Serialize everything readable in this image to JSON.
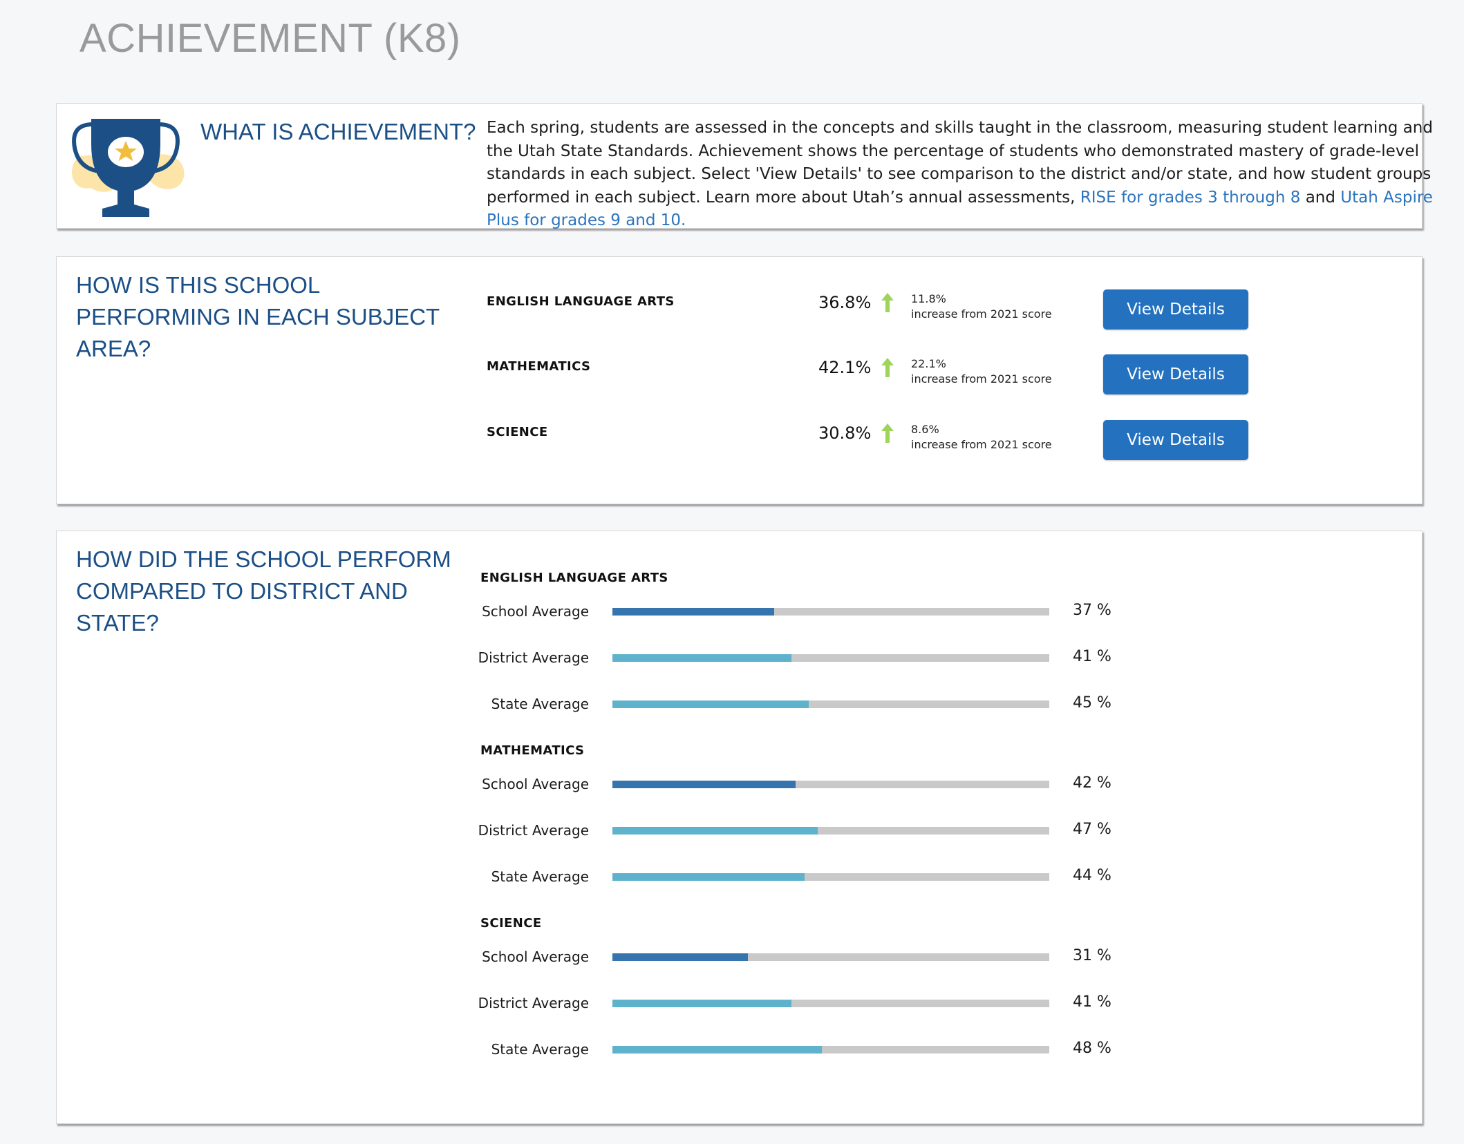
{
  "page": {
    "title": "ACHIEVEMENT (K8)"
  },
  "about": {
    "heading": "WHAT IS ACHIEVEMENT?",
    "text": "Each spring, students are assessed in the concepts and skills taught in the classroom, measuring student learning and the Utah State Standards. Achievement shows the percentage of students who demonstrated mastery of grade-level standards in each subject. Select 'View Details' to see comparison to the district and/or state, and how student groups performed in each subject. Learn more about Utah’s annual assessments,",
    "link1": "RISE for grades 3 through 8",
    "connector": "and",
    "link2": "Utah Aspire Plus for grades 9 and 10.",
    "icon": "trophy-star-icon"
  },
  "performance": {
    "heading": "HOW IS THIS SCHOOL PERFORMING IN EACH SUBJECT AREA?",
    "subjects": [
      {
        "name": "ENGLISH LANGUAGE ARTS",
        "percent": "36.8%",
        "change": "11.8%",
        "change_label": "increase from 2021 score",
        "button": "View Details"
      },
      {
        "name": "MATHEMATICS",
        "percent": "42.1%",
        "change": "22.1%",
        "change_label": "increase from 2021 score",
        "button": "View Details"
      },
      {
        "name": "SCIENCE",
        "percent": "30.8%",
        "change": "8.6%",
        "change_label": "increase from 2021 score",
        "button": "View Details"
      }
    ],
    "arrow_icon": "up-arrow-icon",
    "arrow_color": "#9ed45a"
  },
  "comparison": {
    "heading": "HOW DID THE SCHOOL PERFORM COMPARED TO DISTRICT AND STATE?",
    "colors": {
      "school": "#3574ad",
      "district": "#5fb2cb",
      "state": "#5fb2cb",
      "track": "#c9c9c9"
    }
  },
  "chart_data": {
    "type": "bar",
    "orientation": "horizontal",
    "xlim": [
      0,
      100
    ],
    "unit": "%",
    "groups": [
      {
        "subject": "ENGLISH LANGUAGE ARTS",
        "rows": [
          {
            "label": "School Average",
            "value": 37,
            "display": "37 %"
          },
          {
            "label": "District Average",
            "value": 41,
            "display": "41 %"
          },
          {
            "label": "State Average",
            "value": 45,
            "display": "45 %"
          }
        ]
      },
      {
        "subject": "MATHEMATICS",
        "rows": [
          {
            "label": "School Average",
            "value": 42,
            "display": "42 %"
          },
          {
            "label": "District Average",
            "value": 47,
            "display": "47 %"
          },
          {
            "label": "State Average",
            "value": 44,
            "display": "44 %"
          }
        ]
      },
      {
        "subject": "SCIENCE",
        "rows": [
          {
            "label": "School Average",
            "value": 31,
            "display": "31 %"
          },
          {
            "label": "District Average",
            "value": 41,
            "display": "41 %"
          },
          {
            "label": "State Average",
            "value": 48,
            "display": "48 %"
          }
        ]
      }
    ]
  }
}
